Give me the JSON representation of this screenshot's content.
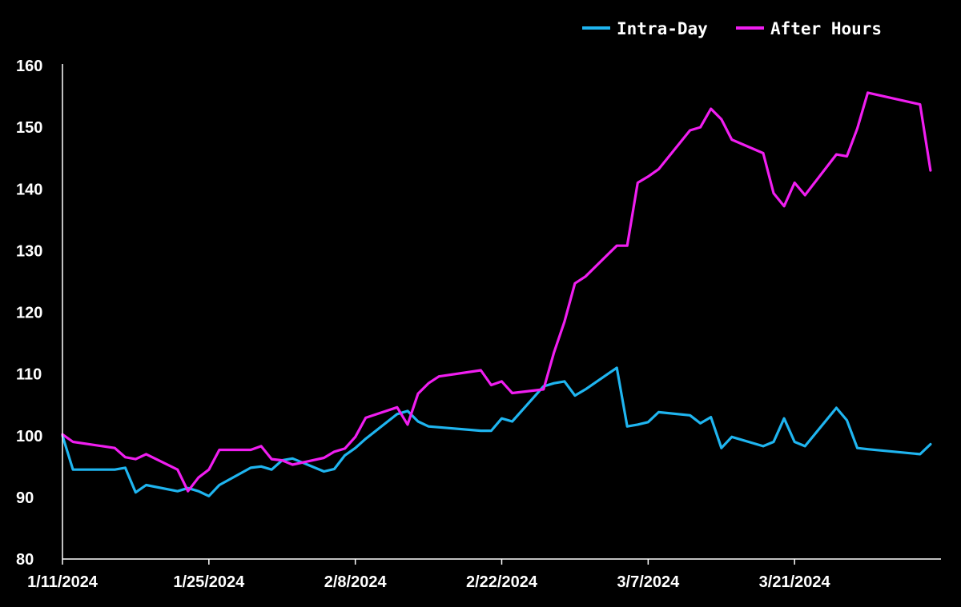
{
  "chart_data": {
    "type": "line",
    "title": "",
    "xlabel": "",
    "ylabel": "",
    "xlim": [
      "2024-01-11",
      "2024-04-04"
    ],
    "ylim": [
      80,
      160
    ],
    "y_ticks": [
      80,
      90,
      100,
      110,
      120,
      130,
      140,
      150,
      160
    ],
    "x_ticks": [
      {
        "date": "2024-01-11",
        "label": "1/11/2024"
      },
      {
        "date": "2024-01-25",
        "label": "1/25/2024"
      },
      {
        "date": "2024-02-08",
        "label": "2/8/2024"
      },
      {
        "date": "2024-02-22",
        "label": "2/22/2024"
      },
      {
        "date": "2024-03-07",
        "label": "3/7/2024"
      },
      {
        "date": "2024-03-21",
        "label": "3/21/2024"
      }
    ],
    "grid": false,
    "background": "#000000",
    "legend": "top-right",
    "series": [
      {
        "name": "Intra-Day",
        "color": "#1fb5f0",
        "points": [
          [
            "2024-01-11",
            100
          ],
          [
            "2024-01-12",
            94.5
          ],
          [
            "2024-01-16",
            94.5
          ],
          [
            "2024-01-17",
            94.8
          ],
          [
            "2024-01-18",
            90.8
          ],
          [
            "2024-01-19",
            92
          ],
          [
            "2024-01-22",
            91
          ],
          [
            "2024-01-23",
            91.5
          ],
          [
            "2024-01-24",
            91
          ],
          [
            "2024-01-25",
            90.2
          ],
          [
            "2024-01-26",
            92
          ],
          [
            "2024-01-29",
            94.8
          ],
          [
            "2024-01-30",
            95
          ],
          [
            "2024-01-31",
            94.5
          ],
          [
            "2024-02-01",
            96
          ],
          [
            "2024-02-02",
            96.3
          ],
          [
            "2024-02-05",
            94.2
          ],
          [
            "2024-02-06",
            94.6
          ],
          [
            "2024-02-07",
            96.8
          ],
          [
            "2024-02-08",
            98
          ],
          [
            "2024-02-09",
            99.5
          ],
          [
            "2024-02-12",
            103.5
          ],
          [
            "2024-02-13",
            104
          ],
          [
            "2024-02-14",
            102.3
          ],
          [
            "2024-02-15",
            101.5
          ],
          [
            "2024-02-20",
            100.8
          ],
          [
            "2024-02-21",
            100.8
          ],
          [
            "2024-02-22",
            102.8
          ],
          [
            "2024-02-23",
            102.3
          ],
          [
            "2024-02-26",
            108
          ],
          [
            "2024-02-27",
            108.5
          ],
          [
            "2024-02-28",
            108.8
          ],
          [
            "2024-02-29",
            106.5
          ],
          [
            "2024-03-01",
            107.5
          ],
          [
            "2024-03-04",
            111
          ],
          [
            "2024-03-05",
            101.5
          ],
          [
            "2024-03-06",
            101.8
          ],
          [
            "2024-03-07",
            102.2
          ],
          [
            "2024-03-08",
            103.8
          ],
          [
            "2024-03-11",
            103.3
          ],
          [
            "2024-03-12",
            102
          ],
          [
            "2024-03-13",
            103
          ],
          [
            "2024-03-14",
            98
          ],
          [
            "2024-03-15",
            99.8
          ],
          [
            "2024-03-18",
            98.3
          ],
          [
            "2024-03-19",
            99
          ],
          [
            "2024-03-20",
            102.8
          ],
          [
            "2024-03-21",
            99
          ],
          [
            "2024-03-22",
            98.3
          ],
          [
            "2024-03-25",
            104.5
          ],
          [
            "2024-03-26",
            102.5
          ],
          [
            "2024-03-27",
            98
          ],
          [
            "2024-03-28",
            97.8
          ],
          [
            "2024-04-02",
            97
          ],
          [
            "2024-04-03",
            98.6
          ]
        ]
      },
      {
        "name": "After Hours",
        "color": "#f01ef0",
        "points": [
          [
            "2024-01-11",
            100.2
          ],
          [
            "2024-01-12",
            99
          ],
          [
            "2024-01-16",
            98
          ],
          [
            "2024-01-17",
            96.5
          ],
          [
            "2024-01-18",
            96.2
          ],
          [
            "2024-01-19",
            97
          ],
          [
            "2024-01-22",
            94.5
          ],
          [
            "2024-01-23",
            91
          ],
          [
            "2024-01-24",
            93.2
          ],
          [
            "2024-01-25",
            94.5
          ],
          [
            "2024-01-26",
            97.7
          ],
          [
            "2024-01-29",
            97.7
          ],
          [
            "2024-01-30",
            98.3
          ],
          [
            "2024-01-31",
            96.2
          ],
          [
            "2024-02-01",
            96
          ],
          [
            "2024-02-02",
            95.3
          ],
          [
            "2024-02-05",
            96.4
          ],
          [
            "2024-02-06",
            97.4
          ],
          [
            "2024-02-07",
            97.9
          ],
          [
            "2024-02-08",
            99.8
          ],
          [
            "2024-02-09",
            102.9
          ],
          [
            "2024-02-12",
            104.6
          ],
          [
            "2024-02-13",
            101.8
          ],
          [
            "2024-02-14",
            106.8
          ],
          [
            "2024-02-15",
            108.5
          ],
          [
            "2024-02-16",
            109.6
          ],
          [
            "2024-02-20",
            110.6
          ],
          [
            "2024-02-21",
            108.2
          ],
          [
            "2024-02-22",
            108.8
          ],
          [
            "2024-02-23",
            106.9
          ],
          [
            "2024-02-26",
            107.5
          ],
          [
            "2024-02-27",
            113.5
          ],
          [
            "2024-02-28",
            118.5
          ],
          [
            "2024-02-29",
            124.7
          ],
          [
            "2024-03-01",
            125.8
          ],
          [
            "2024-03-04",
            130.8
          ],
          [
            "2024-03-05",
            130.8
          ],
          [
            "2024-03-06",
            141
          ],
          [
            "2024-03-07",
            142
          ],
          [
            "2024-03-08",
            143.2
          ],
          [
            "2024-03-11",
            149.5
          ],
          [
            "2024-03-12",
            150
          ],
          [
            "2024-03-13",
            153
          ],
          [
            "2024-03-14",
            151.3
          ],
          [
            "2024-03-15",
            148
          ],
          [
            "2024-03-18",
            145.8
          ],
          [
            "2024-03-19",
            139.3
          ],
          [
            "2024-03-20",
            137.2
          ],
          [
            "2024-03-21",
            141
          ],
          [
            "2024-03-22",
            139
          ],
          [
            "2024-03-25",
            145.6
          ],
          [
            "2024-03-26",
            145.3
          ],
          [
            "2024-03-27",
            149.8
          ],
          [
            "2024-03-28",
            155.6
          ],
          [
            "2024-04-02",
            153.7
          ],
          [
            "2024-04-03",
            143
          ]
        ]
      }
    ]
  }
}
